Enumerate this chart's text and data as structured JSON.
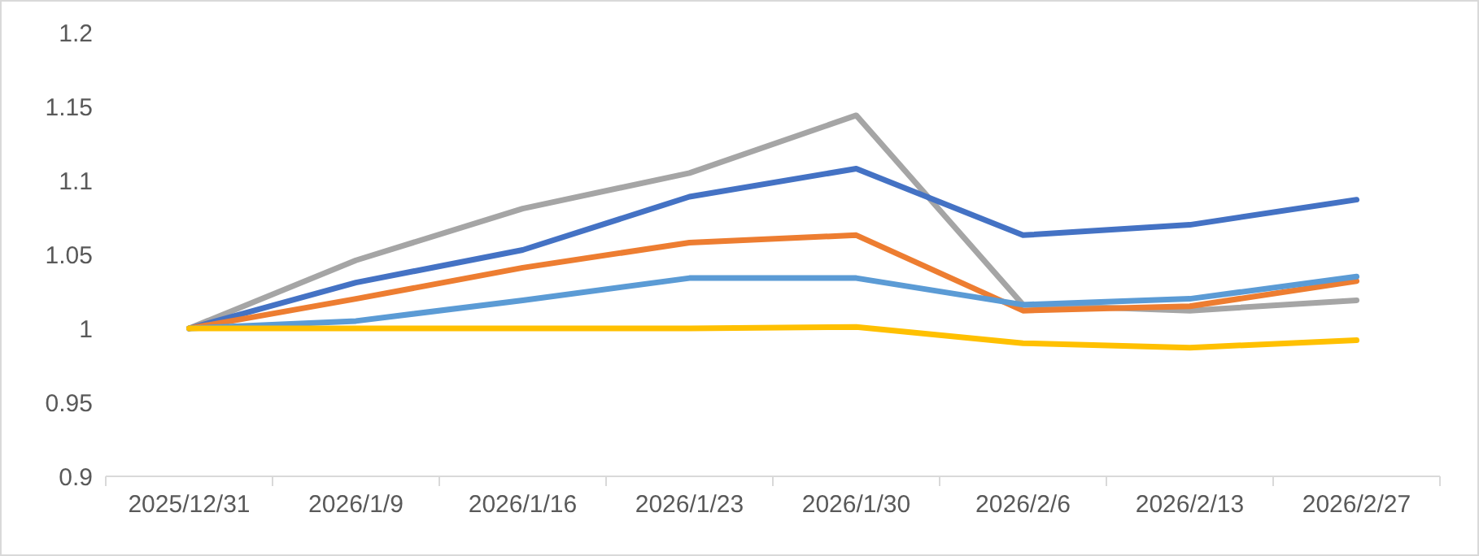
{
  "chart_data": {
    "type": "line",
    "categories": [
      "2025/12/31",
      "2026/1/9",
      "2026/1/16",
      "2026/1/23",
      "2026/1/30",
      "2026/2/6",
      "2026/2/13",
      "2026/2/27"
    ],
    "series": [
      {
        "color": "#a5a5a5",
        "values": [
          1,
          1.046,
          1.081,
          1.105,
          1.144,
          1.016,
          1.012,
          1.019
        ]
      },
      {
        "color": "#4472c4",
        "values": [
          1,
          1.031,
          1.053,
          1.089,
          1.108,
          1.063,
          1.07,
          1.087
        ]
      },
      {
        "color": "#ed7d31",
        "values": [
          1,
          1.02,
          1.041,
          1.058,
          1.063,
          1.012,
          1.015,
          1.032
        ]
      },
      {
        "color": "#5b9bd5",
        "values": [
          1,
          1.005,
          1.019,
          1.034,
          1.034,
          1.016,
          1.02,
          1.035
        ]
      },
      {
        "color": "#ffc000",
        "values": [
          1,
          1,
          1,
          1,
          1.001,
          0.99,
          0.987,
          0.992
        ]
      }
    ],
    "ylim": [
      0.9,
      1.2
    ],
    "yticks": [
      0.9,
      0.95,
      1,
      1.05,
      1.1,
      1.15,
      1.2
    ],
    "grid": false,
    "line_style": "solid",
    "marker": "none"
  }
}
